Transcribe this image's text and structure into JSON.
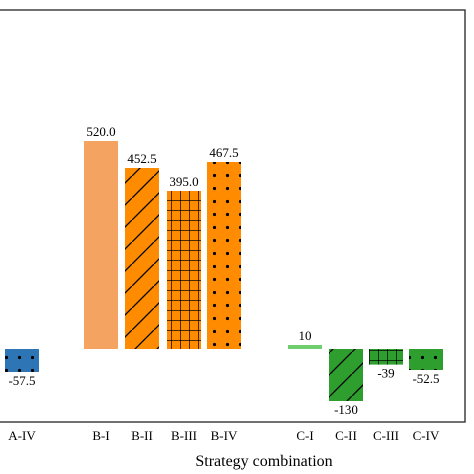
{
  "chart_data": {
    "type": "bar",
    "xlabel": "Strategy combination",
    "ylabel": "",
    "ylim": [
      -150,
      720
    ],
    "grid": false,
    "categories": [
      "A-IV",
      "B-I",
      "B-II",
      "B-III",
      "B-IV",
      "C-I",
      "C-II",
      "C-III",
      "C-IV"
    ],
    "values": [
      -57.5,
      520.0,
      452.5,
      395.0,
      467.5,
      10,
      -130,
      -39,
      -52.5
    ],
    "value_labels": [
      "-57.5",
      "520.0",
      "452.5",
      "395.0",
      "467.5",
      "10",
      "-130",
      "-39",
      "-52.5"
    ],
    "fills": [
      "#2E75B6",
      "#F4A460",
      "#FF8C00",
      "#FF8C00",
      "#FF8C00",
      "#6FCF6F",
      "#2E9E2E",
      "#2E9E2E",
      "#2E9E2E"
    ],
    "patterns": [
      "dots",
      "none",
      "diagonal",
      "grid",
      "dots",
      "none",
      "diagonal",
      "grid",
      "dots"
    ]
  }
}
